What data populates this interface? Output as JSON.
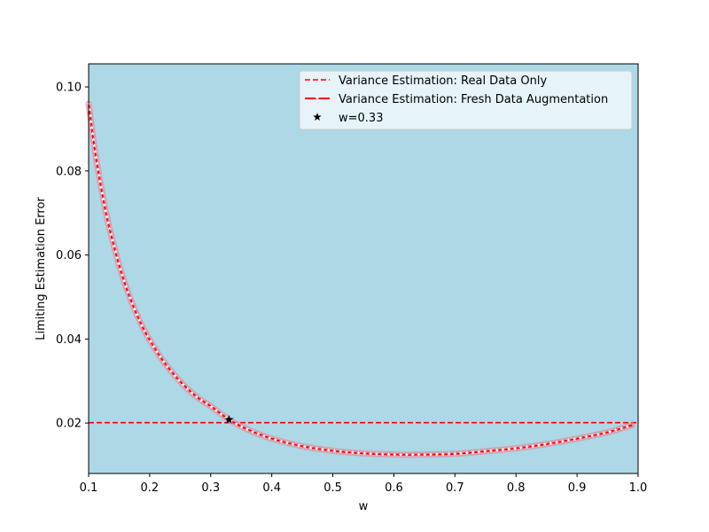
{
  "chart_data": {
    "type": "line",
    "title": "",
    "xlabel": "w",
    "ylabel": "Limiting Estimation Error",
    "xlim": [
      0.1,
      1.0
    ],
    "ylim": [
      0.008,
      0.1055
    ],
    "xticks": [
      0.1,
      0.2,
      0.3,
      0.4,
      0.5,
      0.6,
      0.7,
      0.8,
      0.9,
      1.0
    ],
    "xtick_labels": [
      "0.1",
      "0.2",
      "0.3",
      "0.4",
      "0.5",
      "0.6",
      "0.7",
      "0.8",
      "0.9",
      "1.0"
    ],
    "yticks": [
      0.02,
      0.04,
      0.06,
      0.08,
      0.1
    ],
    "ytick_labels": [
      "0.02",
      "0.04",
      "0.06",
      "0.08",
      "0.10"
    ],
    "grid": false,
    "legend_position": "top-right",
    "plot_background": "#add8e6",
    "series": [
      {
        "name": "Variance Estimation: Real Data Only",
        "style": "dashed",
        "color": "#ff0000",
        "x": [
          0.1,
          1.0
        ],
        "y": [
          0.0201,
          0.0201
        ]
      },
      {
        "name": "Variance Estimation: Fresh Data Augmentation",
        "style": "solid-with-star-markers",
        "color": "#ff0000",
        "marker_color": "#ffffff",
        "x": [
          0.1,
          0.11,
          0.12,
          0.13,
          0.14,
          0.15,
          0.16,
          0.17,
          0.18,
          0.19,
          0.2,
          0.22,
          0.24,
          0.26,
          0.28,
          0.3,
          0.33,
          0.36,
          0.4,
          0.45,
          0.5,
          0.55,
          0.6,
          0.65,
          0.7,
          0.75,
          0.8,
          0.85,
          0.9,
          0.95,
          0.99
        ],
        "y": [
          0.096,
          0.0852,
          0.0765,
          0.069,
          0.063,
          0.0576,
          0.053,
          0.049,
          0.0455,
          0.0424,
          0.0398,
          0.0352,
          0.0315,
          0.0284,
          0.0259,
          0.024,
          0.0208,
          0.0185,
          0.0163,
          0.0145,
          0.0134,
          0.0128,
          0.0125,
          0.0125,
          0.0127,
          0.0133,
          0.014,
          0.015,
          0.0163,
          0.0178,
          0.0195
        ]
      }
    ],
    "highlight_point": {
      "name": "w=0.33",
      "marker": "star",
      "color": "#000000",
      "x": 0.33,
      "y": 0.0208
    }
  }
}
